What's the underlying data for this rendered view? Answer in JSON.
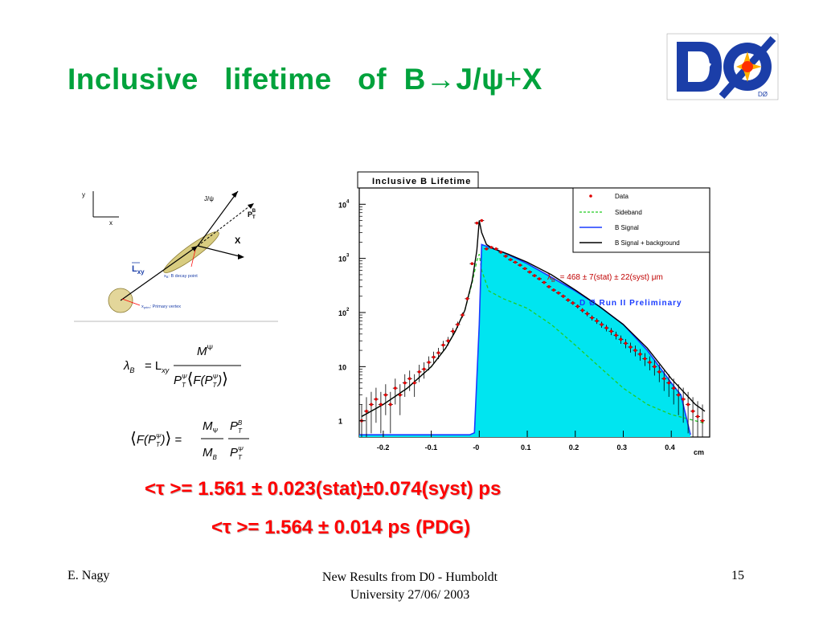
{
  "slide": {
    "title_parts": [
      "Inclusive",
      "lifetime",
      "of",
      "B",
      "→",
      "J/ψ",
      "+",
      "X"
    ],
    "logo_text": "DØ",
    "result_measured": "<τ >= 1.561 ± 0.023(stat)±0.074(syst) ps",
    "result_pdg": "<τ >= 1.564 ± 0.014 ps (PDG)",
    "footer": {
      "author": "E. Nagy",
      "center_line1": "New Results from D0 - Humboldt",
      "center_line2": "University  27/06/ 2003",
      "page": "15"
    }
  },
  "diagram": {
    "axis_y": "y",
    "axis_x": "x",
    "jpsi": "J/ψ",
    "ptb": "P",
    "ptb_sub": "T",
    "ptb_sup": "B",
    "x_label": "X",
    "lxy": "L",
    "lxy_sub": "xy",
    "decay_point": ": B decay point",
    "primary_vertex": ": Primary vertex",
    "decay_sym": "x",
    "decay_sym_sub": "B",
    "prim_sym": "x",
    "prim_sym_sub": "prim"
  },
  "formulas": {
    "f1_lhs": "λ",
    "f1_lhs_sub": "B",
    "f1_eq": "= L",
    "f1_eq_sub": "xy",
    "f1_num": "M",
    "f1_num_sup": "Ψ",
    "f1_den": "P⟨F(P)⟩",
    "f2_lhs": "⟨F(P)⟩ =",
    "f2_frac1_num": "M",
    "f2_frac1_num_sub": "Ψ",
    "f2_frac1_den": "M",
    "f2_frac1_den_sub": "B",
    "f2_frac2_num": "P",
    "f2_frac2_num_sup": "B",
    "f2_frac2_den": "P",
    "f2_frac2_den_sup": "Ψ",
    "sub_T": "T",
    "sup_psi": "Ψ"
  },
  "chart_data": {
    "type": "line",
    "title": "Inclusive B Lifetime",
    "xlabel": "cm",
    "ylabel": "",
    "xlim": [
      -0.25,
      0.48
    ],
    "ylim_log": [
      0.5,
      20000
    ],
    "yscale": "log",
    "x_ticks": [
      "-0.2",
      "-0.1",
      "-0",
      "0.1",
      "0.2",
      "0.3",
      "0.4"
    ],
    "x_tick_values": [
      -0.2,
      -0.1,
      0,
      0.1,
      0.2,
      0.3,
      0.4
    ],
    "y_ticks": [
      {
        "base": "1",
        "exp": ""
      },
      {
        "base": "10",
        "exp": ""
      },
      {
        "base": "10",
        "exp": "2"
      },
      {
        "base": "10",
        "exp": "3"
      },
      {
        "base": "10",
        "exp": "4"
      }
    ],
    "y_tick_values": [
      1,
      10,
      100,
      1000,
      10000
    ],
    "legend_position": "top-right",
    "legend": [
      "Data",
      "Sideband",
      "B Signal",
      "B Signal + background"
    ],
    "annotation_lambda": "λ",
    "annotation_lambda_sub": "B",
    "annotation_lambda_value": "= 468  ± 7(stat)  ± 22(syst)  μm",
    "annotation_run": "D Ø Run II Preliminary",
    "colors": {
      "data": "#e00000",
      "sideband": "#22cc22",
      "signal": "#1a3cff",
      "signal_fill": "#00e5f0",
      "total": "#000000",
      "annotation": "#c00000",
      "run": "#1a3cff"
    },
    "series": [
      {
        "name": "Data",
        "x": [
          -0.245,
          -0.235,
          -0.225,
          -0.215,
          -0.205,
          -0.195,
          -0.185,
          -0.175,
          -0.165,
          -0.155,
          -0.145,
          -0.135,
          -0.125,
          -0.115,
          -0.105,
          -0.095,
          -0.085,
          -0.075,
          -0.065,
          -0.055,
          -0.045,
          -0.035,
          -0.025,
          -0.015,
          -0.005,
          0.005,
          0.015,
          0.025,
          0.035,
          0.045,
          0.055,
          0.065,
          0.075,
          0.085,
          0.095,
          0.105,
          0.115,
          0.125,
          0.135,
          0.145,
          0.155,
          0.165,
          0.175,
          0.185,
          0.195,
          0.205,
          0.215,
          0.225,
          0.235,
          0.245,
          0.255,
          0.265,
          0.275,
          0.285,
          0.295,
          0.305,
          0.315,
          0.325,
          0.335,
          0.345,
          0.355,
          0.365,
          0.375,
          0.385,
          0.395,
          0.405,
          0.415,
          0.425,
          0.435,
          0.445,
          0.455,
          0.465
        ],
        "y": [
          1,
          1.5,
          2,
          2.5,
          2,
          3,
          2,
          4,
          3,
          5,
          6,
          5,
          8,
          9,
          12,
          15,
          18,
          25,
          30,
          45,
          60,
          90,
          180,
          800,
          4500,
          5000,
          1500,
          1600,
          1500,
          1300,
          1100,
          950,
          850,
          750,
          650,
          560,
          480,
          420,
          360,
          300,
          260,
          230,
          200,
          170,
          150,
          130,
          110,
          95,
          80,
          70,
          60,
          52,
          45,
          38,
          32,
          27,
          23,
          20,
          17,
          14,
          12,
          10,
          8,
          6,
          5,
          4,
          3,
          2.5,
          2,
          1.5,
          1.2,
          1
        ]
      },
      {
        "name": "Sideband",
        "x": [
          -0.245,
          -0.2,
          -0.15,
          -0.1,
          -0.07,
          -0.05,
          -0.03,
          -0.015,
          -0.005,
          0.0,
          0.005,
          0.02,
          0.05,
          0.1,
          0.15,
          0.2,
          0.25,
          0.3,
          0.35,
          0.4,
          0.45,
          0.47
        ],
        "y": [
          1.2,
          2,
          4,
          10,
          22,
          45,
          110,
          350,
          900,
          1200,
          600,
          250,
          180,
          120,
          60,
          25,
          10,
          4,
          2,
          1.3,
          1,
          0.9
        ]
      },
      {
        "name": "B Signal",
        "x": [
          -0.25,
          -0.02,
          -0.01,
          0.0,
          0.005,
          0.05,
          0.1,
          0.15,
          0.2,
          0.25,
          0.3,
          0.35,
          0.4,
          0.42,
          0.44
        ],
        "y": [
          0.55,
          0.55,
          0.6,
          60,
          1800,
          1300,
          800,
          450,
          250,
          130,
          60,
          20,
          5,
          3,
          0.55
        ]
      },
      {
        "name": "B Signal + background",
        "x": [
          -0.245,
          -0.2,
          -0.15,
          -0.1,
          -0.07,
          -0.05,
          -0.03,
          -0.015,
          -0.005,
          0.0,
          0.005,
          0.015,
          0.03,
          0.06,
          0.1,
          0.15,
          0.2,
          0.25,
          0.3,
          0.35,
          0.4,
          0.45,
          0.47
        ],
        "y": [
          1.2,
          2,
          4,
          10,
          22,
          45,
          110,
          380,
          1400,
          5000,
          3000,
          1800,
          1500,
          1200,
          850,
          500,
          260,
          130,
          60,
          22,
          6,
          2,
          1.5
        ]
      }
    ]
  }
}
